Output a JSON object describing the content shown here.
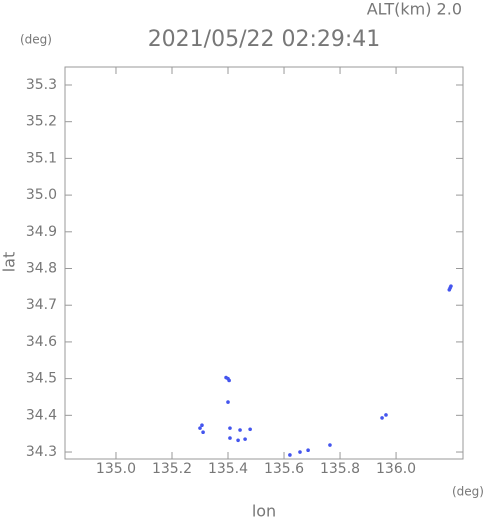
{
  "chart_data": {
    "type": "scatter",
    "title": "2021/05/22 02:29:41",
    "subtitle": "ALT(km) 2.0",
    "y_unit": "(deg)",
    "x_unit": "(deg)",
    "x_label": "lon",
    "y_label": "lat",
    "color": "#4455ee",
    "xlim": [
      134.818,
      136.239
    ],
    "ylim": [
      34.281,
      35.349
    ],
    "xticks": [
      {
        "value": 135.0,
        "label": "135.0"
      },
      135.2,
      135.4,
      135.6,
      135.8,
      {
        "value": 136.0,
        "label": "136.0"
      }
    ],
    "yticks": [
      34.3,
      34.4,
      34.5,
      34.6,
      34.7,
      34.8,
      34.9,
      {
        "value": 35.0,
        "label": "35.0"
      },
      35.1,
      35.2,
      35.3
    ],
    "x": [
      136.193,
      136.19,
      136.196,
      135.4,
      135.393,
      135.404,
      135.4,
      135.3,
      135.307,
      135.311,
      135.407,
      135.443,
      135.479,
      135.407,
      135.461,
      135.436,
      135.621,
      135.657,
      135.686,
      135.764,
      135.95,
      135.964
    ],
    "y": [
      34.747,
      34.742,
      34.752,
      34.5,
      34.503,
      34.495,
      34.436,
      34.365,
      34.373,
      34.354,
      34.365,
      34.36,
      34.362,
      34.338,
      34.335,
      34.332,
      34.292,
      34.3,
      34.305,
      34.319,
      34.393,
      34.401
    ]
  }
}
